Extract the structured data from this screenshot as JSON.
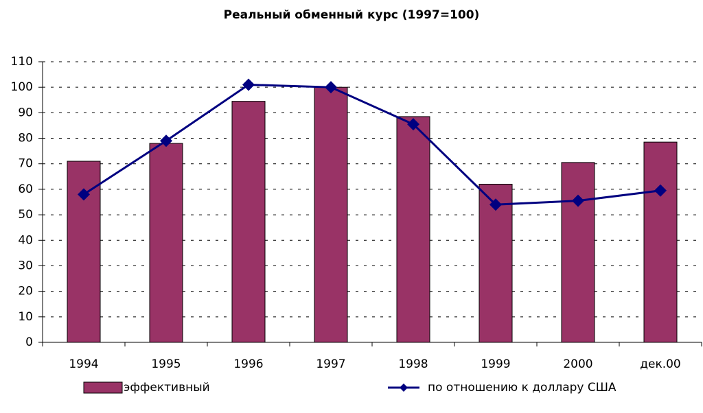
{
  "chart_data": {
    "type": "bar",
    "title": "Реальный обменный курс (1997=100)",
    "categories": [
      "1994",
      "1995",
      "1996",
      "1997",
      "1998",
      "1999",
      "2000",
      "дек.00"
    ],
    "series": [
      {
        "name": "эффективный",
        "color": "#993366",
        "values": [
          71,
          78,
          94.5,
          100,
          88.5,
          62,
          70.5,
          78.5
        ]
      },
      {
        "name": "по отношению к доллару США",
        "type": "line",
        "color": "#000080",
        "values": [
          58,
          79,
          101,
          100,
          85.5,
          54,
          55.5,
          59.5
        ]
      }
    ],
    "ylim": [
      0,
      110
    ],
    "yticks": [
      0,
      10,
      20,
      30,
      40,
      50,
      60,
      70,
      80,
      90,
      100,
      110
    ],
    "grid": true,
    "legend": "bottom"
  }
}
